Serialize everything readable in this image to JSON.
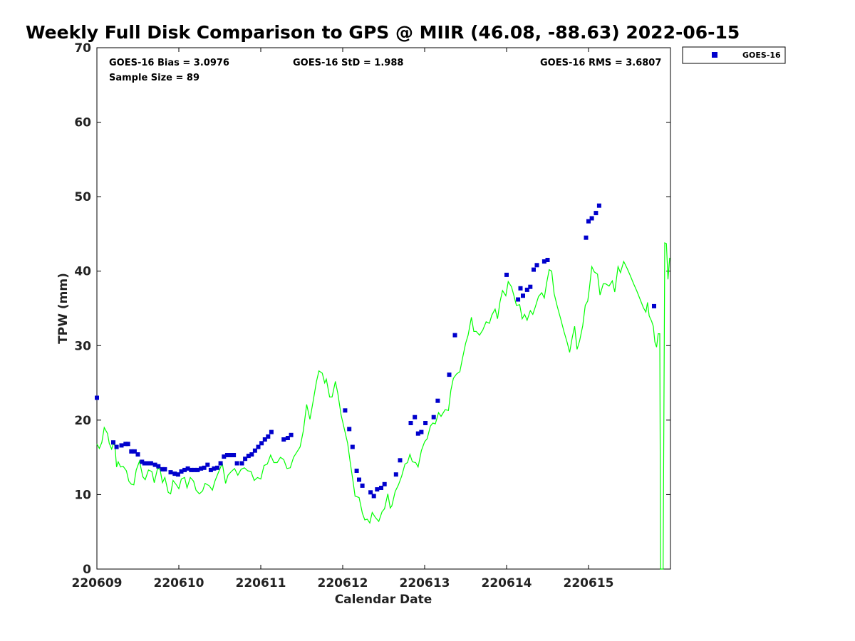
{
  "chart_data": {
    "type": "scatter",
    "title": "Weekly Full Disk Comparison to GPS @ MIIR (46.08, -88.63) 2022-06-15",
    "xlabel": "Calendar Date",
    "ylabel": "TPW (mm)",
    "xlim": [
      0,
      7
    ],
    "ylim": [
      0,
      70
    ],
    "x_ticks": [
      {
        "value": 0,
        "label": "220609"
      },
      {
        "value": 1,
        "label": "220610"
      },
      {
        "value": 2,
        "label": "220611"
      },
      {
        "value": 3,
        "label": "220612"
      },
      {
        "value": 4,
        "label": "220613"
      },
      {
        "value": 5,
        "label": "220614"
      },
      {
        "value": 6,
        "label": "220615"
      }
    ],
    "y_ticks": [
      0,
      10,
      20,
      30,
      40,
      50,
      60,
      70
    ],
    "grid": false,
    "legend": {
      "placement": "top-right",
      "entries": [
        "GOES-16"
      ]
    },
    "stats": {
      "bias": "GOES-16 Bias = 3.0976",
      "std": "GOES-16 StD = 1.988",
      "rms": "GOES-16 RMS = 3.6807",
      "sample": "Sample Size = 89"
    },
    "series": [
      {
        "name": "GOES-16",
        "kind": "scatter",
        "color": "#0000cc",
        "points": [
          [
            0.0,
            23.0
          ],
          [
            0.2,
            17.0
          ],
          [
            0.24,
            16.4
          ],
          [
            0.3,
            16.6
          ],
          [
            0.35,
            16.8
          ],
          [
            0.38,
            16.8
          ],
          [
            0.42,
            15.8
          ],
          [
            0.46,
            15.8
          ],
          [
            0.5,
            15.4
          ],
          [
            0.55,
            14.4
          ],
          [
            0.58,
            14.2
          ],
          [
            0.62,
            14.2
          ],
          [
            0.66,
            14.2
          ],
          [
            0.71,
            14.0
          ],
          [
            0.75,
            13.8
          ],
          [
            0.8,
            13.4
          ],
          [
            0.83,
            13.4
          ],
          [
            0.9,
            13.0
          ],
          [
            0.95,
            12.8
          ],
          [
            0.99,
            12.7
          ],
          [
            1.03,
            13.1
          ],
          [
            1.07,
            13.3
          ],
          [
            1.11,
            13.5
          ],
          [
            1.15,
            13.3
          ],
          [
            1.19,
            13.3
          ],
          [
            1.23,
            13.3
          ],
          [
            1.27,
            13.5
          ],
          [
            1.31,
            13.6
          ],
          [
            1.35,
            14.0
          ],
          [
            1.39,
            13.3
          ],
          [
            1.43,
            13.5
          ],
          [
            1.47,
            13.6
          ],
          [
            1.51,
            14.2
          ],
          [
            1.55,
            15.1
          ],
          [
            1.59,
            15.3
          ],
          [
            1.63,
            15.3
          ],
          [
            1.67,
            15.3
          ],
          [
            1.71,
            14.2
          ],
          [
            1.77,
            14.2
          ],
          [
            1.81,
            14.8
          ],
          [
            1.85,
            15.2
          ],
          [
            1.89,
            15.4
          ],
          [
            1.93,
            15.9
          ],
          [
            1.97,
            16.4
          ],
          [
            2.01,
            16.9
          ],
          [
            2.05,
            17.4
          ],
          [
            2.09,
            17.8
          ],
          [
            2.13,
            18.4
          ],
          [
            2.28,
            17.4
          ],
          [
            2.33,
            17.6
          ],
          [
            2.37,
            18.0
          ],
          [
            3.03,
            21.3
          ],
          [
            3.08,
            18.8
          ],
          [
            3.12,
            16.4
          ],
          [
            3.17,
            13.2
          ],
          [
            3.2,
            12.0
          ],
          [
            3.24,
            11.2
          ],
          [
            3.34,
            10.3
          ],
          [
            3.38,
            9.8
          ],
          [
            3.42,
            10.7
          ],
          [
            3.47,
            10.9
          ],
          [
            3.51,
            11.4
          ],
          [
            3.65,
            12.7
          ],
          [
            3.7,
            14.6
          ],
          [
            3.83,
            19.6
          ],
          [
            3.88,
            20.4
          ],
          [
            3.92,
            18.2
          ],
          [
            3.96,
            18.4
          ],
          [
            4.01,
            19.6
          ],
          [
            4.11,
            20.4
          ],
          [
            4.16,
            22.6
          ],
          [
            4.3,
            26.1
          ],
          [
            4.37,
            31.4
          ],
          [
            5.0,
            39.5
          ],
          [
            5.14,
            36.2
          ],
          [
            5.17,
            37.7
          ],
          [
            5.2,
            36.7
          ],
          [
            5.25,
            37.5
          ],
          [
            5.29,
            37.9
          ],
          [
            5.33,
            40.2
          ],
          [
            5.37,
            40.8
          ],
          [
            5.46,
            41.3
          ],
          [
            5.5,
            41.5
          ],
          [
            5.97,
            44.5
          ],
          [
            6.0,
            46.7
          ],
          [
            6.04,
            47.1
          ],
          [
            6.09,
            47.8
          ],
          [
            6.13,
            48.8
          ],
          [
            6.8,
            35.3
          ]
        ]
      },
      {
        "name": "",
        "kind": "line",
        "color": "#00ff00",
        "points": [
          [
            0.0,
            16.8
          ],
          [
            0.03,
            16.2
          ],
          [
            0.06,
            17.0
          ],
          [
            0.09,
            19.0
          ],
          [
            0.13,
            18.2
          ],
          [
            0.15,
            16.9
          ],
          [
            0.18,
            16.1
          ],
          [
            0.2,
            16.8
          ],
          [
            0.22,
            16.6
          ],
          [
            0.24,
            13.7
          ],
          [
            0.26,
            14.4
          ],
          [
            0.29,
            13.7
          ],
          [
            0.32,
            13.8
          ],
          [
            0.36,
            13.2
          ],
          [
            0.39,
            11.8
          ],
          [
            0.42,
            11.4
          ],
          [
            0.45,
            11.3
          ],
          [
            0.48,
            13.3
          ],
          [
            0.52,
            14.5
          ],
          [
            0.56,
            12.4
          ],
          [
            0.59,
            12.0
          ],
          [
            0.63,
            13.3
          ],
          [
            0.67,
            13.1
          ],
          [
            0.7,
            11.6
          ],
          [
            0.74,
            13.5
          ],
          [
            0.77,
            13.4
          ],
          [
            0.8,
            11.6
          ],
          [
            0.83,
            12.3
          ],
          [
            0.87,
            10.3
          ],
          [
            0.9,
            10.1
          ],
          [
            0.93,
            11.9
          ],
          [
            0.97,
            11.3
          ],
          [
            1.0,
            10.8
          ],
          [
            1.03,
            12.1
          ],
          [
            1.07,
            12.3
          ],
          [
            1.1,
            10.9
          ],
          [
            1.14,
            12.3
          ],
          [
            1.18,
            11.8
          ],
          [
            1.21,
            10.6
          ],
          [
            1.25,
            10.1
          ],
          [
            1.29,
            10.5
          ],
          [
            1.32,
            11.5
          ],
          [
            1.37,
            11.2
          ],
          [
            1.41,
            10.6
          ],
          [
            1.44,
            11.8
          ],
          [
            1.48,
            12.9
          ],
          [
            1.53,
            14.2
          ],
          [
            1.57,
            11.5
          ],
          [
            1.6,
            12.6
          ],
          [
            1.64,
            13.1
          ],
          [
            1.68,
            13.5
          ],
          [
            1.72,
            12.6
          ],
          [
            1.76,
            13.4
          ],
          [
            1.8,
            13.6
          ],
          [
            1.84,
            13.2
          ],
          [
            1.88,
            13.1
          ],
          [
            1.92,
            11.9
          ],
          [
            1.96,
            12.3
          ],
          [
            2.0,
            12.1
          ],
          [
            2.04,
            13.9
          ],
          [
            2.08,
            14.1
          ],
          [
            2.12,
            15.3
          ],
          [
            2.16,
            14.3
          ],
          [
            2.2,
            14.3
          ],
          [
            2.24,
            15.0
          ],
          [
            2.28,
            14.7
          ],
          [
            2.32,
            13.5
          ],
          [
            2.36,
            13.6
          ],
          [
            2.4,
            15.0
          ],
          [
            2.44,
            15.7
          ],
          [
            2.48,
            16.4
          ],
          [
            2.52,
            18.6
          ],
          [
            2.56,
            22.1
          ],
          [
            2.6,
            20.1
          ],
          [
            2.64,
            22.6
          ],
          [
            2.68,
            25.2
          ],
          [
            2.71,
            26.6
          ],
          [
            2.75,
            26.3
          ],
          [
            2.78,
            25.0
          ],
          [
            2.8,
            25.5
          ],
          [
            2.84,
            23.1
          ],
          [
            2.87,
            23.1
          ],
          [
            2.91,
            25.2
          ],
          [
            2.94,
            23.6
          ],
          [
            2.98,
            20.7
          ],
          [
            3.02,
            18.8
          ],
          [
            3.06,
            16.9
          ],
          [
            3.09,
            14.5
          ],
          [
            3.13,
            11.5
          ],
          [
            3.15,
            9.8
          ],
          [
            3.2,
            9.6
          ],
          [
            3.24,
            7.5
          ],
          [
            3.27,
            6.6
          ],
          [
            3.3,
            6.7
          ],
          [
            3.33,
            6.2
          ],
          [
            3.36,
            7.6
          ],
          [
            3.4,
            6.9
          ],
          [
            3.44,
            6.4
          ],
          [
            3.48,
            7.7
          ],
          [
            3.51,
            8.1
          ],
          [
            3.55,
            10.1
          ],
          [
            3.58,
            8.2
          ],
          [
            3.6,
            8.5
          ],
          [
            3.64,
            10.4
          ],
          [
            3.68,
            11.3
          ],
          [
            3.72,
            12.5
          ],
          [
            3.76,
            14.1
          ],
          [
            3.79,
            14.3
          ],
          [
            3.82,
            15.4
          ],
          [
            3.85,
            14.4
          ],
          [
            3.89,
            14.3
          ],
          [
            3.92,
            13.7
          ],
          [
            3.96,
            15.9
          ],
          [
            4.0,
            17.1
          ],
          [
            4.03,
            17.5
          ],
          [
            4.07,
            19.2
          ],
          [
            4.1,
            19.6
          ],
          [
            4.13,
            19.5
          ],
          [
            4.17,
            21.0
          ],
          [
            4.2,
            20.5
          ],
          [
            4.25,
            21.4
          ],
          [
            4.29,
            21.3
          ],
          [
            4.32,
            24.0
          ],
          [
            4.35,
            25.6
          ],
          [
            4.39,
            26.2
          ],
          [
            4.43,
            26.5
          ],
          [
            4.46,
            28.2
          ],
          [
            4.5,
            30.3
          ],
          [
            4.53,
            31.4
          ],
          [
            4.57,
            33.8
          ],
          [
            4.6,
            31.9
          ],
          [
            4.63,
            31.9
          ],
          [
            4.67,
            31.4
          ],
          [
            4.71,
            32.1
          ],
          [
            4.75,
            33.2
          ],
          [
            4.79,
            33.0
          ],
          [
            4.82,
            34.1
          ],
          [
            4.86,
            34.9
          ],
          [
            4.89,
            33.6
          ],
          [
            4.92,
            35.9
          ],
          [
            4.95,
            37.4
          ],
          [
            4.99,
            36.7
          ],
          [
            5.02,
            38.6
          ],
          [
            5.06,
            37.9
          ],
          [
            5.09,
            36.7
          ],
          [
            5.12,
            35.4
          ],
          [
            5.16,
            35.5
          ],
          [
            5.19,
            33.6
          ],
          [
            5.22,
            34.2
          ],
          [
            5.25,
            33.4
          ],
          [
            5.29,
            34.7
          ],
          [
            5.32,
            34.2
          ],
          [
            5.35,
            35.2
          ],
          [
            5.39,
            36.6
          ],
          [
            5.43,
            37.1
          ],
          [
            5.46,
            36.4
          ],
          [
            5.49,
            38.5
          ],
          [
            5.52,
            40.2
          ],
          [
            5.55,
            40.0
          ],
          [
            5.58,
            37.0
          ],
          [
            5.62,
            35.2
          ],
          [
            5.66,
            33.6
          ],
          [
            5.7,
            31.9
          ],
          [
            5.74,
            30.4
          ],
          [
            5.77,
            29.1
          ],
          [
            5.8,
            31.0
          ],
          [
            5.83,
            32.6
          ],
          [
            5.86,
            29.5
          ],
          [
            5.89,
            30.6
          ],
          [
            5.93,
            32.7
          ],
          [
            5.96,
            35.4
          ],
          [
            5.99,
            36.0
          ],
          [
            6.01,
            37.6
          ],
          [
            6.04,
            40.6
          ],
          [
            6.07,
            39.9
          ],
          [
            6.11,
            39.6
          ],
          [
            6.14,
            36.8
          ],
          [
            6.18,
            38.3
          ],
          [
            6.21,
            38.3
          ],
          [
            6.25,
            38.0
          ],
          [
            6.29,
            38.7
          ],
          [
            6.32,
            37.2
          ],
          [
            6.36,
            40.6
          ],
          [
            6.39,
            39.8
          ],
          [
            6.43,
            41.3
          ],
          [
            6.47,
            40.4
          ],
          [
            6.51,
            39.4
          ],
          [
            6.55,
            38.3
          ],
          [
            6.59,
            37.3
          ],
          [
            6.63,
            36.2
          ],
          [
            6.67,
            35.1
          ],
          [
            6.7,
            34.5
          ],
          [
            6.72,
            35.8
          ],
          [
            6.74,
            34.0
          ],
          [
            6.77,
            33.3
          ],
          [
            6.79,
            32.6
          ],
          [
            6.81,
            30.5
          ],
          [
            6.83,
            29.8
          ],
          [
            6.85,
            31.6
          ],
          [
            6.87,
            31.6
          ],
          [
            6.88,
            0.0
          ],
          [
            6.91,
            0.0
          ],
          [
            6.93,
            43.8
          ],
          [
            6.95,
            43.7
          ],
          [
            6.97,
            38.9
          ],
          [
            6.99,
            41.8
          ]
        ]
      }
    ]
  }
}
